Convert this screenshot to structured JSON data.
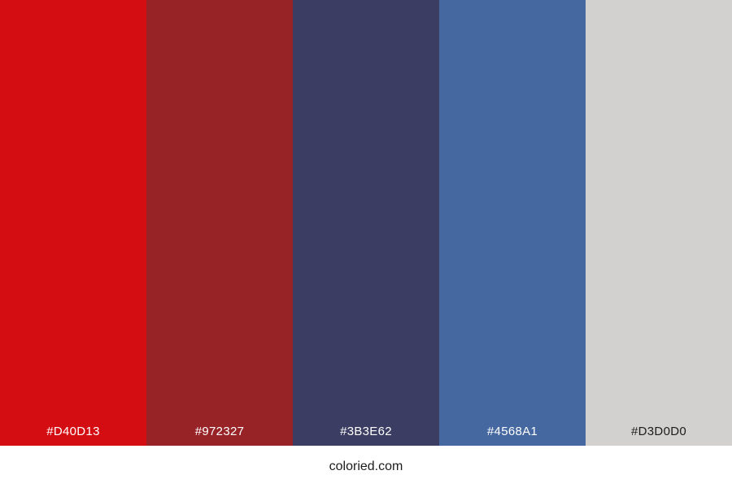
{
  "palette": {
    "swatches": [
      {
        "hex": "#D40D13",
        "label": "#D40D13",
        "label_color": "#ffffff"
      },
      {
        "hex": "#972327",
        "label": "#972327",
        "label_color": "#ffffff"
      },
      {
        "hex": "#3B3E62",
        "label": "#3B3E62",
        "label_color": "#ffffff"
      },
      {
        "hex": "#4568A1",
        "label": "#4568A1",
        "label_color": "#ffffff"
      },
      {
        "hex": "#D3D0D0",
        "label": "#D3D0D0",
        "label_color": "#1c1c1c"
      }
    ]
  },
  "footer": {
    "site_label": "coloried.com",
    "background": "#ffffff",
    "text_color": "#1c1c1c"
  }
}
